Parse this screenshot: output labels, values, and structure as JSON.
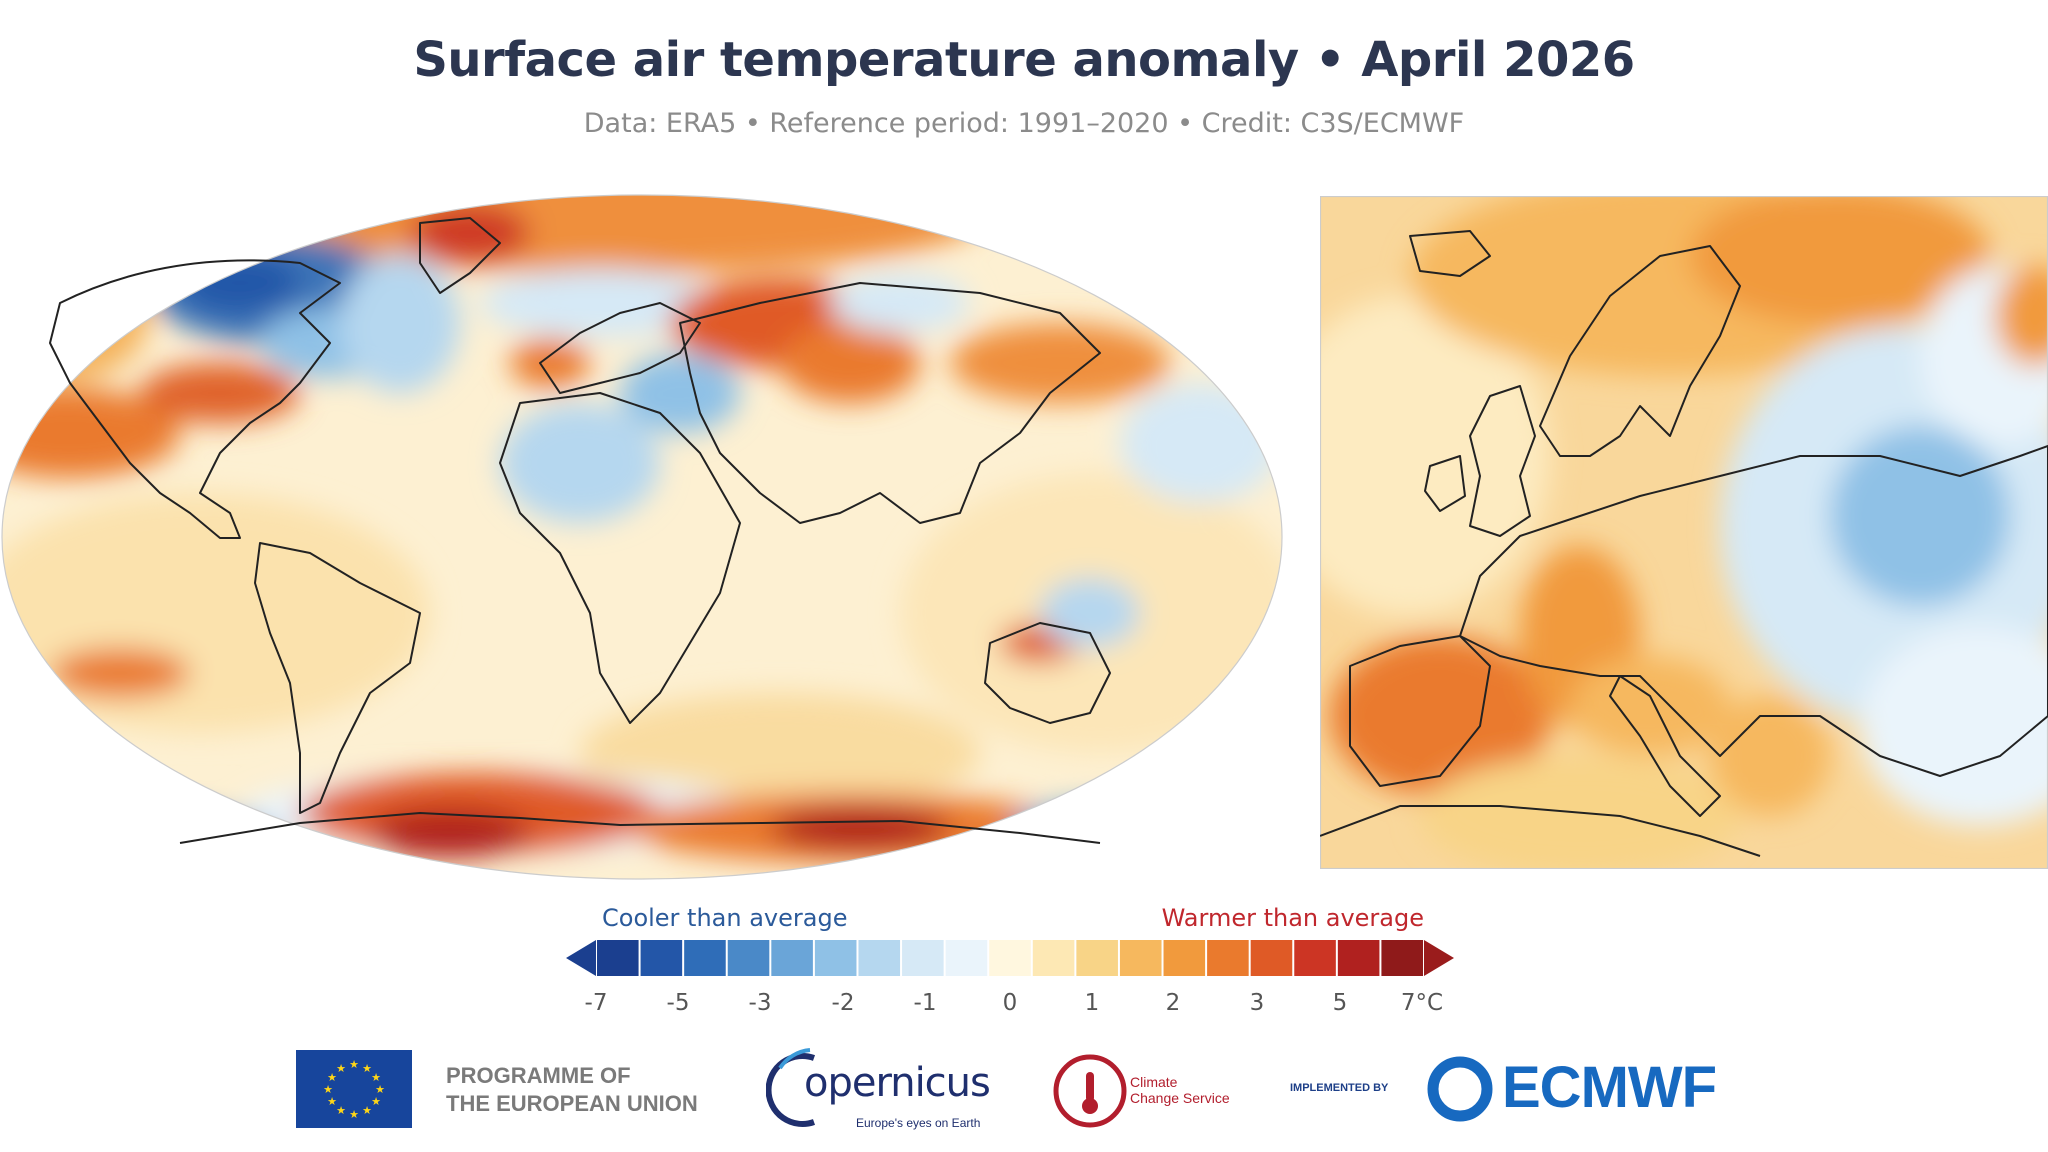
{
  "title": "Surface air temperature anomaly • April 2026",
  "subtitle": "Data: ERA5 • Reference period: 1991–2020 • Credit: C3S/ECMWF",
  "legend": {
    "cool_label": "Cooler than average",
    "warm_label": "Warmer than average",
    "ticks": [
      "-7",
      "-5",
      "-3",
      "-2",
      "-1",
      "0",
      "1",
      "2",
      "3",
      "5",
      "7°C"
    ],
    "colors": [
      "#1b3f8f",
      "#2356a8",
      "#2f6db8",
      "#4a89c8",
      "#6aa5d8",
      "#8fc1e6",
      "#b5d7ef",
      "#d6e9f6",
      "#eaf4fb",
      "#fff7df",
      "#fde8b4",
      "#f8d487",
      "#f6b85e",
      "#f19a3d",
      "#ea7a2d",
      "#df5a26",
      "#cc3524",
      "#b0211f",
      "#8f1a1a"
    ],
    "cool_end": "#1b3f8f",
    "warm_end": "#9a1c1c"
  },
  "maps": {
    "world": {
      "projection": "Robinson",
      "background": "#fdf0d2"
    },
    "europe": {
      "background": "#f9d79b"
    }
  },
  "footer": {
    "eu_line1": "PROGRAMME OF",
    "eu_line2": "THE EUROPEAN UNION",
    "copernicus": "opernicus",
    "copernicus_tag": "Europe's eyes on Earth",
    "c3s_line1": "Climate",
    "c3s_line2": "Change Service",
    "implemented_by": "IMPLEMENTED BY",
    "ecmwf": "ECMWF"
  }
}
